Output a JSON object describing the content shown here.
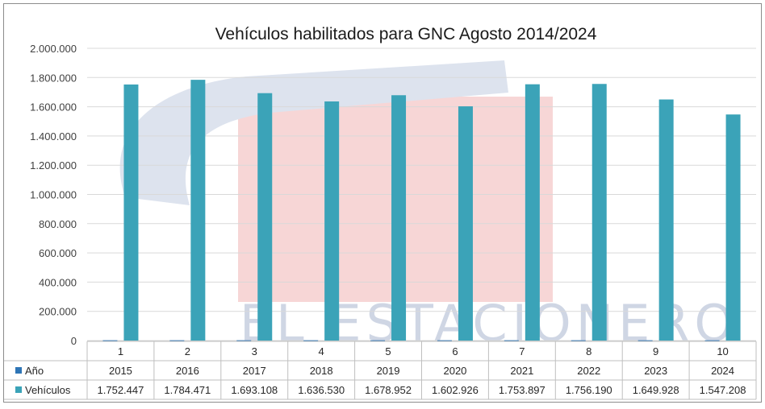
{
  "watermark": {
    "text": "EL ESTACIONERO"
  },
  "chart_data": {
    "type": "bar",
    "title": "Vehículos habilitados para GNC Agosto 2014/2024",
    "categories": [
      "1",
      "2",
      "3",
      "4",
      "5",
      "6",
      "7",
      "8",
      "9",
      "10"
    ],
    "ylim": [
      0,
      2000000
    ],
    "ytick_labels": [
      "0",
      "200.000",
      "400.000",
      "600.000",
      "800.000",
      "1.000.000",
      "1.200.000",
      "1.400.000",
      "1.600.000",
      "1.800.000",
      "2.000.000"
    ],
    "grid": true,
    "series": [
      {
        "name": "Año",
        "color": "#2e75b6",
        "values": [
          2015,
          2016,
          2017,
          2018,
          2019,
          2020,
          2021,
          2022,
          2023,
          2024
        ],
        "labels": [
          "2015",
          "2016",
          "2017",
          "2018",
          "2019",
          "2020",
          "2021",
          "2022",
          "2023",
          "2024"
        ]
      },
      {
        "name": "Vehículos",
        "color": "#3ba3b8",
        "values": [
          1752447,
          1784471,
          1693108,
          1636530,
          1678952,
          1602926,
          1753897,
          1756190,
          1649928,
          1547208
        ],
        "labels": [
          "1.752.447",
          "1.784.471",
          "1.693.108",
          "1.636.530",
          "1.678.952",
          "1.602.926",
          "1.753.897",
          "1.756.190",
          "1.649.928",
          "1.547.208"
        ]
      }
    ]
  }
}
